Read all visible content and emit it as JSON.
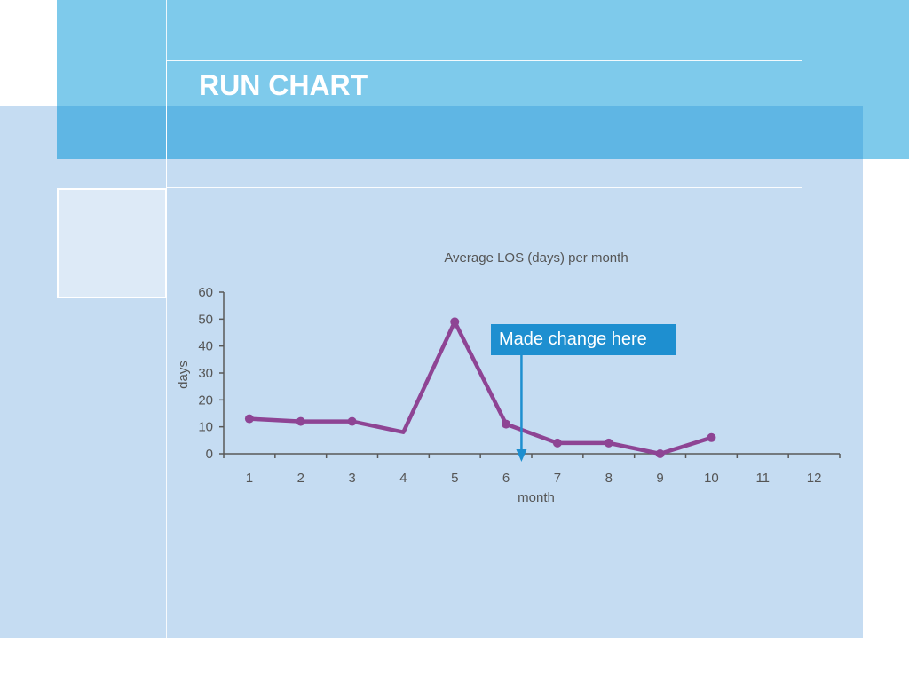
{
  "slide": {
    "title": "RUN CHART",
    "colors": {
      "background_light": "#c5dcf2",
      "band_top": "#7ecaeb",
      "band_mid": "#5fb6e4",
      "series_line": "#8e4494",
      "callout": "#1e8fd0",
      "axis": "#595959"
    }
  },
  "chart_data": {
    "type": "line",
    "title": "Average LOS (days) per month",
    "xlabel": "month",
    "ylabel": "days",
    "categories": [
      "1",
      "2",
      "3",
      "4",
      "5",
      "6",
      "7",
      "8",
      "9",
      "10",
      "11",
      "12"
    ],
    "y_ticks": [
      "0",
      "10",
      "20",
      "30",
      "40",
      "50",
      "60"
    ],
    "ylim": [
      0,
      60
    ],
    "grid": false,
    "series": [
      {
        "values": [
          13,
          12,
          12,
          8,
          49,
          11,
          4,
          4,
          0,
          6,
          null,
          null
        ],
        "markers_on": [
          true,
          true,
          true,
          false,
          true,
          true,
          true,
          true,
          true,
          true,
          false,
          false
        ]
      }
    ],
    "annotation": {
      "text": "Made change here",
      "at_x": 6.3
    }
  }
}
